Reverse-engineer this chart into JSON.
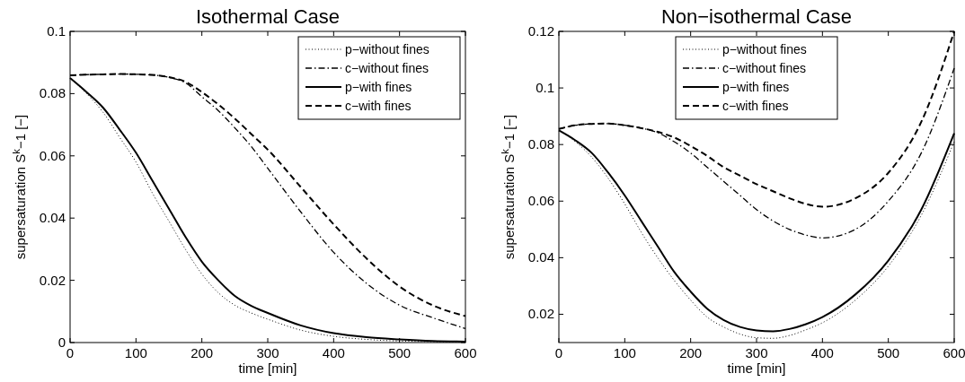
{
  "chart_data": [
    {
      "type": "line",
      "title": "Isothermal Case",
      "xlabel": "time [min]",
      "ylabel": "supersaturation S$^{k}$−1 [−]",
      "x": [
        0,
        25,
        50,
        75,
        100,
        125,
        150,
        175,
        200,
        225,
        250,
        275,
        300,
        350,
        400,
        450,
        500,
        550,
        600
      ],
      "xlim": [
        0,
        600
      ],
      "xticks": [
        0,
        100,
        200,
        300,
        400,
        500,
        600
      ],
      "ylim": [
        0,
        0.1
      ],
      "yticks": [
        0,
        0.02,
        0.04,
        0.06,
        0.08,
        0.1
      ],
      "grid": false,
      "legend": "top right",
      "series": [
        {
          "name": "p−without fines",
          "color": "#000000",
          "line_style": "dotted",
          "values": [
            0.085,
            0.08,
            0.074,
            0.066,
            0.058,
            0.048,
            0.039,
            0.03,
            0.022,
            0.016,
            0.012,
            0.0095,
            0.0075,
            0.004,
            0.002,
            0.001,
            0.0005,
            0.0003,
            0.0002
          ]
        },
        {
          "name": "c−without fines",
          "color": "#000000",
          "line_style": "dashdot",
          "values": [
            0.0859,
            0.0861,
            0.0862,
            0.0863,
            0.0862,
            0.086,
            0.0852,
            0.0835,
            0.079,
            0.0745,
            0.069,
            0.063,
            0.056,
            0.042,
            0.029,
            0.019,
            0.012,
            0.008,
            0.0045
          ]
        },
        {
          "name": "p−with fines",
          "color": "#000000",
          "line_style": "solid",
          "values": [
            0.085,
            0.0805,
            0.0755,
            0.0685,
            0.061,
            0.052,
            0.043,
            0.034,
            0.026,
            0.02,
            0.015,
            0.0118,
            0.0095,
            0.0055,
            0.003,
            0.0017,
            0.001,
            0.0005,
            0.0003
          ]
        },
        {
          "name": "c−with fines",
          "color": "#000000",
          "line_style": "dashed",
          "values": [
            0.0859,
            0.0861,
            0.0862,
            0.0863,
            0.0862,
            0.086,
            0.0853,
            0.0838,
            0.0805,
            0.0765,
            0.072,
            0.067,
            0.062,
            0.05,
            0.038,
            0.027,
            0.018,
            0.012,
            0.0085
          ]
        }
      ]
    },
    {
      "type": "line",
      "title": "Non−isothermal Case",
      "xlabel": "time [min]",
      "ylabel": "supersaturation S$^{k}$−1 [−]",
      "x": [
        0,
        25,
        50,
        75,
        100,
        125,
        150,
        175,
        200,
        225,
        250,
        275,
        300,
        325,
        350,
        375,
        400,
        450,
        500,
        550,
        600
      ],
      "xlim": [
        0,
        600
      ],
      "xticks": [
        0,
        100,
        200,
        300,
        400,
        500,
        600
      ],
      "ylim": [
        0.01,
        0.12
      ],
      "yticks": [
        0.02,
        0.04,
        0.06,
        0.08,
        0.1,
        0.12
      ],
      "grid": false,
      "legend": "top",
      "series": [
        {
          "name": "p−without fines",
          "color": "#000000",
          "line_style": "dotted",
          "values": [
            0.085,
            0.081,
            0.0755,
            0.068,
            0.059,
            0.049,
            0.04,
            0.032,
            0.025,
            0.019,
            0.0155,
            0.013,
            0.0117,
            0.0115,
            0.0125,
            0.0145,
            0.017,
            0.025,
            0.037,
            0.055,
            0.081
          ]
        },
        {
          "name": "c−without fines",
          "color": "#000000",
          "line_style": "dashdot",
          "values": [
            0.0855,
            0.0868,
            0.0873,
            0.0874,
            0.0868,
            0.0858,
            0.0842,
            0.081,
            0.077,
            0.072,
            0.067,
            0.062,
            0.057,
            0.053,
            0.05,
            0.048,
            0.047,
            0.05,
            0.06,
            0.077,
            0.107
          ]
        },
        {
          "name": "p−with fines",
          "color": "#000000",
          "line_style": "solid",
          "values": [
            0.085,
            0.0815,
            0.077,
            0.07,
            0.062,
            0.053,
            0.044,
            0.035,
            0.028,
            0.022,
            0.018,
            0.0155,
            0.0143,
            0.014,
            0.0148,
            0.0165,
            0.019,
            0.027,
            0.039,
            0.057,
            0.084
          ]
        },
        {
          "name": "c−with fines",
          "color": "#000000",
          "line_style": "dashed",
          "values": [
            0.0855,
            0.0868,
            0.0873,
            0.0874,
            0.0868,
            0.0858,
            0.0845,
            0.0825,
            0.0795,
            0.076,
            0.072,
            0.069,
            0.066,
            0.0635,
            0.061,
            0.059,
            0.058,
            0.061,
            0.07,
            0.088,
            0.12
          ]
        }
      ]
    }
  ]
}
